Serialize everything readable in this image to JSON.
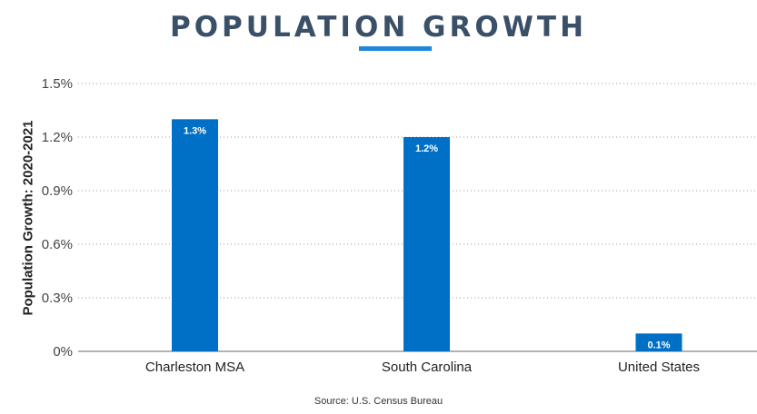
{
  "header": {
    "title": "POPULATION GROWTH"
  },
  "footer": {
    "source": "Source: U.S. Census Bureau"
  },
  "colors": {
    "bar": "#0070c6",
    "title": "#3a4f68",
    "accent": "#1f86d9"
  },
  "chart_data": {
    "type": "bar",
    "title": "POPULATION GROWTH",
    "xlabel": "",
    "ylabel": "Population Growth: 2020-2021",
    "categories": [
      "Charleston MSA",
      "South Carolina",
      "United States"
    ],
    "values": [
      1.3,
      1.2,
      0.1
    ],
    "data_labels": [
      "1.3%",
      "1.2%",
      "0.1%"
    ],
    "ylim": [
      0,
      1.5
    ],
    "yticks": [
      0,
      0.3,
      0.6,
      0.9,
      1.2,
      1.5
    ],
    "ytick_labels": [
      "0%",
      "0.3%",
      "0.6%",
      "0.9%",
      "1.2%",
      "1.5%"
    ],
    "grid": true,
    "legend": "none",
    "source": "Source: U.S. Census Bureau"
  }
}
